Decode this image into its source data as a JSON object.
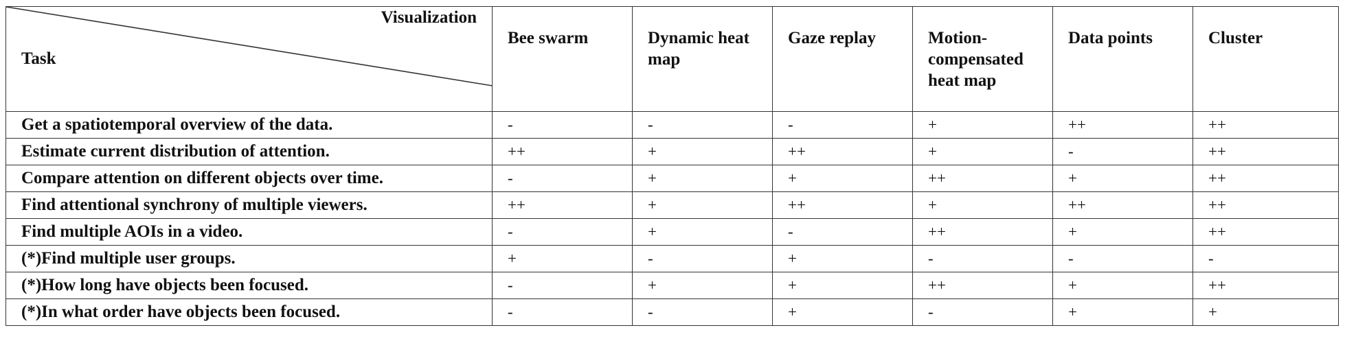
{
  "table": {
    "corner": {
      "top_label": "Visualization",
      "bottom_label": "Task"
    },
    "columns": [
      {
        "key": "bee",
        "label": "Bee swarm"
      },
      {
        "key": "dyn",
        "label": "Dynamic heat map"
      },
      {
        "key": "gaze",
        "label": "Gaze replay"
      },
      {
        "key": "motion",
        "label": "Motion-compensated heat map"
      },
      {
        "key": "points",
        "label": "Data points"
      },
      {
        "key": "cluster",
        "label": "Cluster"
      }
    ],
    "rows": [
      {
        "task": "Get a spatiotemporal overview of the data.",
        "values": [
          "-",
          "-",
          "-",
          "+",
          "++",
          "++"
        ]
      },
      {
        "task": "Estimate current distribution of attention.",
        "values": [
          "++",
          "+",
          "++",
          "+",
          "-",
          "++"
        ]
      },
      {
        "task": "Compare attention on different objects over time.",
        "values": [
          "-",
          "+",
          "+",
          "++",
          "+",
          "++"
        ]
      },
      {
        "task": "Find attentional synchrony of multiple viewers.",
        "values": [
          "++",
          "+",
          "++",
          "+",
          "++",
          "++"
        ]
      },
      {
        "task": "Find multiple AOIs in a video.",
        "values": [
          "-",
          "+",
          "-",
          "++",
          "+",
          "++"
        ]
      },
      {
        "task": "(*)Find multiple user groups.",
        "values": [
          "+",
          "-",
          "+",
          "-",
          "-",
          "-"
        ]
      },
      {
        "task": "(*)How long have objects been focused.",
        "values": [
          "-",
          "+",
          "+",
          "++",
          "+",
          "++"
        ]
      },
      {
        "task": "(*)In what order have objects been focused.",
        "values": [
          "-",
          "-",
          "+",
          "-",
          "+",
          "+"
        ]
      }
    ]
  }
}
